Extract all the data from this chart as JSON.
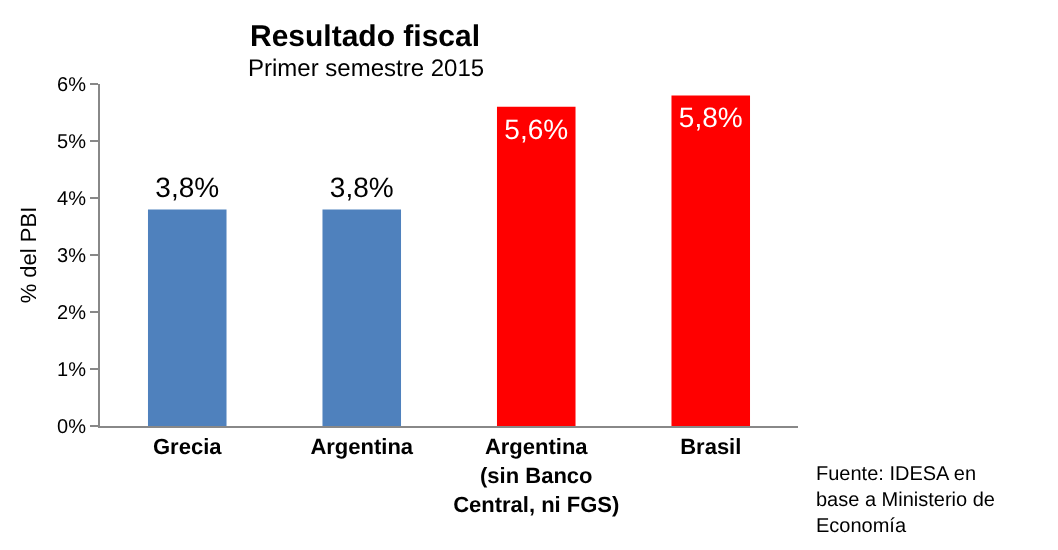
{
  "chart_data": {
    "type": "bar",
    "title": "Resultado fiscal",
    "subtitle": "Primer semestre 2015",
    "ylabel": "% del PBI",
    "categories": [
      "Grecia",
      "Argentina",
      "Argentina\n(sin Banco\nCentral, ni FGS)",
      "Brasil"
    ],
    "values": [
      3.8,
      3.8,
      5.6,
      5.8
    ],
    "colors": [
      "#4f81bd",
      "#4f81bd",
      "#ff0000",
      "#ff0000"
    ],
    "value_labels": [
      "3,8%",
      "3,8%",
      "5,6%",
      "5,8%"
    ],
    "ylim": [
      0,
      6
    ],
    "yticks": [
      {
        "value": 0,
        "label": "0%"
      },
      {
        "value": 1,
        "label": "1%"
      },
      {
        "value": 2,
        "label": "2%"
      },
      {
        "value": 3,
        "label": "3%"
      },
      {
        "value": 4,
        "label": "4%"
      },
      {
        "value": 5,
        "label": "5%"
      },
      {
        "value": 6,
        "label": "6%"
      }
    ],
    "grid": false,
    "annotations": [
      "Fuente: IDESA en\nbase a Ministerio de\nEconomía"
    ]
  }
}
